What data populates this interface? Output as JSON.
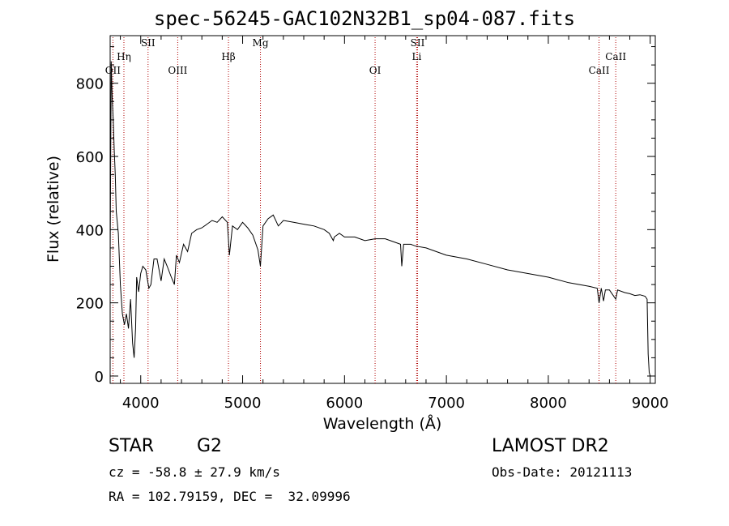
{
  "chart_data": {
    "type": "line",
    "title": "spec-56245-GAC102N32B1_sp04-087.fits",
    "xlabel": "Wavelength (Å)",
    "ylabel": "Flux (relative)",
    "xlim": [
      3700,
      9050
    ],
    "ylim": [
      -20,
      930
    ],
    "xticks": [
      "4000",
      "5000",
      "6000",
      "7000",
      "8000",
      "9000"
    ],
    "yticks": [
      "0",
      "200",
      "400",
      "600",
      "800"
    ],
    "grid": false,
    "legend": "none",
    "series": [
      {
        "x": [
          3700,
          3710,
          3720,
          3730,
          3740,
          3750,
          3760,
          3780,
          3800,
          3820,
          3840,
          3860,
          3880,
          3900,
          3920,
          3935,
          3950,
          3960,
          3980,
          4000,
          4020,
          4050,
          4080,
          4100,
          4130,
          4160,
          4200,
          4230,
          4260,
          4300,
          4330,
          4350,
          4380,
          4420,
          4460,
          4500,
          4550,
          4600,
          4650,
          4700,
          4750,
          4800,
          4850,
          4870,
          4900,
          4950,
          5000,
          5050,
          5100,
          5150,
          5175,
          5200,
          5250,
          5300,
          5350,
          5400,
          5500,
          5600,
          5700,
          5800,
          5850,
          5890,
          5900,
          5950,
          6000,
          6100,
          6200,
          6300,
          6400,
          6500,
          6550,
          6562,
          6580,
          6650,
          6700,
          6800,
          6900,
          7000,
          7200,
          7400,
          7600,
          7800,
          8000,
          8200,
          8400,
          8480,
          8498,
          8520,
          8542,
          8560,
          8600,
          8662,
          8680,
          8750,
          8800,
          8850,
          8900,
          8950,
          8970,
          8980,
          8990,
          9000,
          9010
        ],
        "y": [
          320,
          860,
          760,
          700,
          620,
          550,
          450,
          390,
          250,
          170,
          140,
          170,
          130,
          210,
          90,
          50,
          130,
          270,
          230,
          280,
          300,
          290,
          240,
          250,
          320,
          320,
          260,
          320,
          300,
          270,
          250,
          330,
          310,
          360,
          340,
          390,
          400,
          405,
          415,
          425,
          420,
          435,
          420,
          330,
          410,
          400,
          420,
          405,
          385,
          345,
          300,
          410,
          430,
          440,
          410,
          425,
          420,
          415,
          410,
          400,
          390,
          370,
          380,
          390,
          380,
          380,
          370,
          375,
          375,
          365,
          360,
          300,
          360,
          360,
          355,
          350,
          340,
          330,
          320,
          305,
          290,
          280,
          270,
          255,
          245,
          240,
          200,
          240,
          205,
          235,
          235,
          210,
          235,
          228,
          225,
          220,
          222,
          218,
          210,
          60,
          10,
          0,
          0
        ]
      }
    ],
    "line_markers": [
      {
        "label": "OII",
        "x": 3727
      },
      {
        "label": "Hη",
        "x": 3835
      },
      {
        "label": "SII",
        "x": 4072
      },
      {
        "label": "OIII",
        "x": 4363
      },
      {
        "label": "Hβ",
        "x": 4861
      },
      {
        "label": "Mg",
        "x": 5175
      },
      {
        "label": "OI",
        "x": 6300
      },
      {
        "label": "SII",
        "x": 6717
      },
      {
        "label": "Li",
        "x": 6708
      },
      {
        "label": "CaII",
        "x": 8498
      },
      {
        "label": "CaII",
        "x": 8662
      }
    ]
  },
  "info": {
    "object_class": "STAR",
    "subclass": "G2",
    "survey": "LAMOST DR2",
    "redshift": "cz = -58.8 ± 27.9 km/s",
    "obs_date": "Obs-Date: 20121113",
    "coords": "RA = 102.79159, DEC =  32.09996"
  }
}
